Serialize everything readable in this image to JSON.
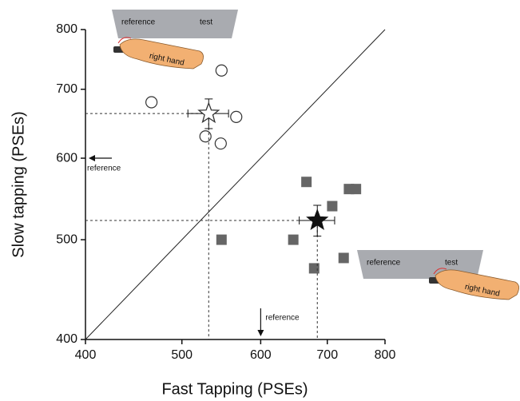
{
  "chart_data": {
    "type": "scatter",
    "xlabel": "Fast Tapping (PSEs)",
    "ylabel": "Slow tapping (PSEs)",
    "xlim": [
      400,
      800
    ],
    "ylim": [
      400,
      800
    ],
    "xticks": [
      400,
      500,
      600,
      700,
      800
    ],
    "yticks": [
      400,
      500,
      600,
      700,
      800
    ],
    "xscale": "log",
    "yscale": "log",
    "identity_line": true,
    "series": [
      {
        "marker": "circle",
        "color": "#333333",
        "filled": false,
        "x": [
          466,
          548,
          567,
          528,
          547
        ],
        "y": [
          680,
          730,
          658,
          630,
          620
        ]
      },
      {
        "marker": "square",
        "color": "#666666",
        "filled": true,
        "x": [
          548,
          647,
          667,
          708,
          736,
          748,
          679,
          727
        ],
        "y": [
          500,
          500,
          569,
          539,
          560,
          560,
          469,
          480
        ]
      },
      {
        "marker": "star",
        "color": "#333333",
        "filled": false,
        "x": [
          532
        ],
        "y": [
          663
        ],
        "x_err": [
          25
        ],
        "y_err": [
          22
        ]
      },
      {
        "marker": "star",
        "color": "#111111",
        "filled": true,
        "x": [
          684
        ],
        "y": [
          522
        ],
        "x_err": [
          28
        ],
        "y_err": [
          18
        ]
      }
    ],
    "reference_lines": [
      {
        "axis": "y",
        "value": 600,
        "label": "reference"
      },
      {
        "axis": "x",
        "value": 600,
        "label": "reference"
      }
    ],
    "illustrations": [
      {
        "left": "reference",
        "right": "test",
        "hand": "right hand"
      },
      {
        "left": "reference",
        "right": "test",
        "hand": "right hand"
      }
    ]
  }
}
